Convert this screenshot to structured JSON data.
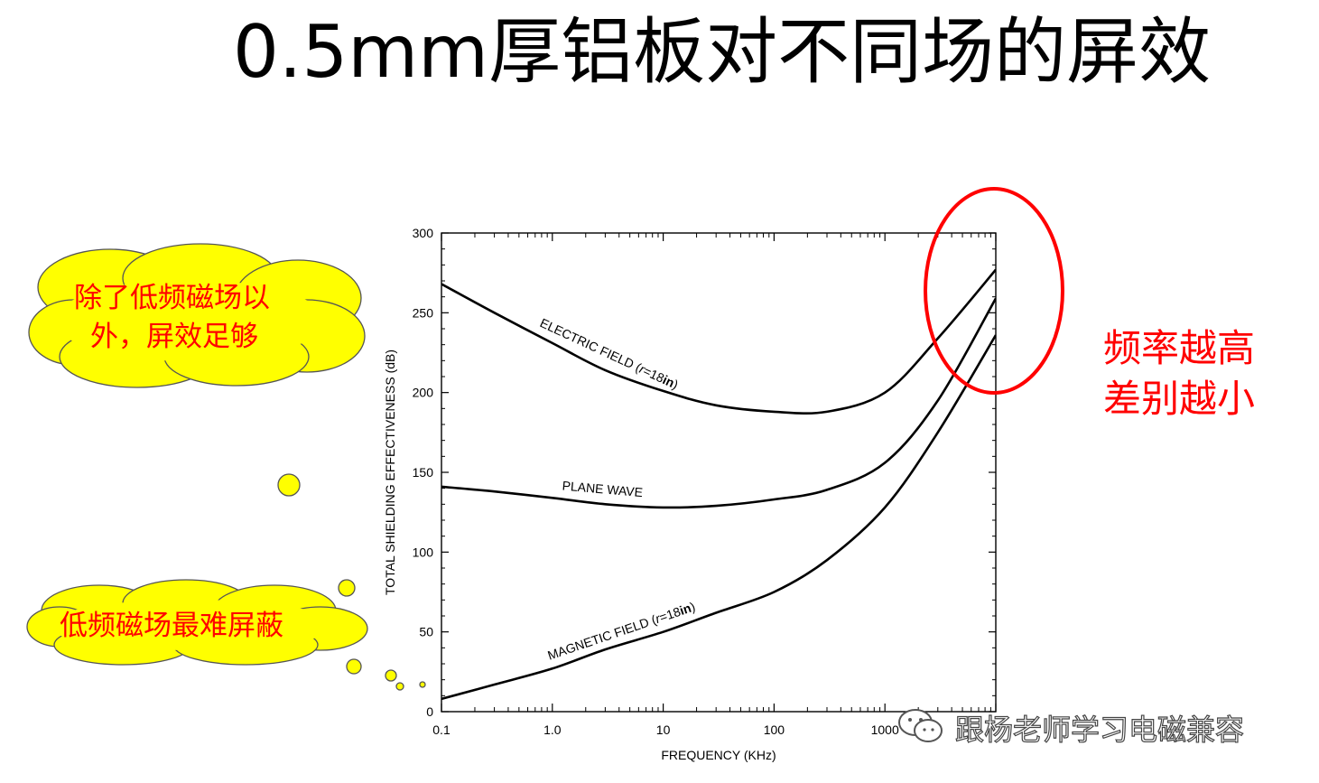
{
  "slide": {
    "title": "0.5mm厚铝板对不同场的屏效",
    "note_lines": [
      "频率越高",
      "差别越小"
    ],
    "callouts": [
      {
        "lines": [
          "除了低频磁场以",
          "外，屏效足够"
        ]
      },
      {
        "lines": [
          "低频磁场最难屏蔽"
        ]
      }
    ],
    "watermark": "跟杨老师学习电磁兼容",
    "colors": {
      "cloud_fill": "#ffff00",
      "cloud_stroke": "#555555",
      "annotation": "#ff0000"
    }
  },
  "chart_data": {
    "type": "line",
    "xscale": "log",
    "xlabel": "FREQUENCY (KHz)",
    "ylabel": "TOTAL SHIELDING EFFECTIVENESS (dB)",
    "xlim": [
      0.1,
      10000
    ],
    "ylim": [
      0,
      300
    ],
    "x_ticks": [
      0.1,
      1.0,
      10,
      100,
      1000
    ],
    "x_tick_labels": [
      "0.1",
      "1.0",
      "10",
      "100",
      "1000"
    ],
    "y_ticks": [
      0,
      50,
      100,
      150,
      200,
      250,
      300
    ],
    "y_tick_labels": [
      "0",
      "50",
      "100",
      "150",
      "200",
      "250",
      "300"
    ],
    "series": [
      {
        "name": "ELECTRIC FIELD (r=18in)",
        "label_parts": [
          "ELECTRIC FIELD (",
          "r",
          "=18",
          "in",
          ")"
        ],
        "points": [
          [
            0.1,
            268
          ],
          [
            0.3,
            250
          ],
          [
            1,
            231
          ],
          [
            3,
            214
          ],
          [
            10,
            201
          ],
          [
            30,
            192
          ],
          [
            100,
            188
          ],
          [
            300,
            188
          ],
          [
            1000,
            200
          ],
          [
            3000,
            234
          ],
          [
            10000,
            277
          ]
        ]
      },
      {
        "name": "PLANE WAVE",
        "label_parts": [
          "PLANE WAVE"
        ],
        "points": [
          [
            0.1,
            141
          ],
          [
            0.3,
            138
          ],
          [
            1,
            134
          ],
          [
            3,
            130
          ],
          [
            10,
            128
          ],
          [
            30,
            129
          ],
          [
            100,
            133
          ],
          [
            300,
            139
          ],
          [
            1000,
            156
          ],
          [
            3000,
            195
          ],
          [
            10000,
            259
          ]
        ]
      },
      {
        "name": "MAGNETIC FIELD (r=18in)",
        "label_parts": [
          "MAGNETIC FIELD (",
          "r",
          "=18",
          "in",
          ")"
        ],
        "points": [
          [
            0.1,
            8
          ],
          [
            0.3,
            17
          ],
          [
            1,
            27
          ],
          [
            3,
            39
          ],
          [
            10,
            50
          ],
          [
            30,
            62
          ],
          [
            100,
            75
          ],
          [
            300,
            95
          ],
          [
            1000,
            128
          ],
          [
            3000,
            175
          ],
          [
            10000,
            236
          ]
        ]
      }
    ]
  }
}
